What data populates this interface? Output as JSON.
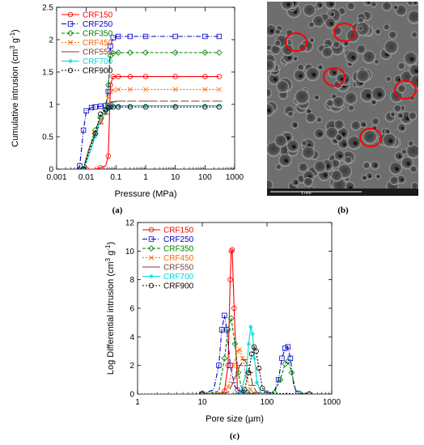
{
  "chart_data": [
    {
      "type": "line",
      "panel": "a",
      "caption": "(a)",
      "xlabel": "Pressure (MPa)",
      "ylabel": "Cumulative intrusion (cm",
      "ylabel_sup1": "3",
      "ylabel_mid": " g",
      "ylabel_sup2": "-1",
      "ylabel_end": ")",
      "xscale": "log",
      "xlim": [
        0.001,
        1000
      ],
      "ylim": [
        0,
        2.5
      ],
      "xticks": [
        "0.001",
        "0.01",
        "0.1",
        "1",
        "10",
        "100",
        "1000"
      ],
      "yticks": [
        "0",
        "0.5",
        "1",
        "1.5",
        "2",
        "2.5"
      ],
      "legend_position": "top-left",
      "series": [
        {
          "name": "CRF150",
          "color": "#ff0000",
          "dash": "",
          "marker": "circle",
          "x": [
            0.005,
            0.01,
            0.02,
            0.03,
            0.045,
            0.055,
            0.065,
            0.08,
            0.12,
            0.3,
            1,
            10,
            100,
            300
          ],
          "y": [
            0,
            0,
            0,
            0.02,
            0.05,
            0.2,
            1.3,
            1.43,
            1.43,
            1.43,
            1.43,
            1.43,
            1.43,
            1.43
          ]
        },
        {
          "name": "CRF250",
          "color": "#0000cc",
          "dash": "6,2,1,2",
          "marker": "square",
          "x": [
            0.005,
            0.006,
            0.008,
            0.01,
            0.015,
            0.02,
            0.03,
            0.045,
            0.055,
            0.065,
            0.08,
            0.12,
            0.3,
            1,
            10,
            100,
            300
          ],
          "y": [
            0,
            0.05,
            0.6,
            0.9,
            0.95,
            0.96,
            0.97,
            0.98,
            1.2,
            1.9,
            2.03,
            2.05,
            2.05,
            2.05,
            2.05,
            2.05,
            2.05
          ]
        },
        {
          "name": "CRF350",
          "color": "#008000",
          "dash": "4,2",
          "marker": "diamond",
          "x": [
            0.005,
            0.008,
            0.012,
            0.02,
            0.03,
            0.045,
            0.055,
            0.065,
            0.08,
            0.12,
            0.3,
            1,
            10,
            100,
            300
          ],
          "y": [
            0,
            0,
            0.3,
            0.6,
            0.8,
            0.9,
            1.3,
            1.75,
            1.79,
            1.8,
            1.8,
            1.8,
            1.8,
            1.8,
            1.8
          ]
        },
        {
          "name": "CRF450",
          "color": "#ff6600",
          "dash": "2,2",
          "marker": "x",
          "x": [
            0.005,
            0.008,
            0.012,
            0.02,
            0.03,
            0.045,
            0.055,
            0.065,
            0.08,
            0.12,
            0.3,
            1,
            10,
            100,
            300
          ],
          "y": [
            0,
            0,
            0.25,
            0.55,
            0.75,
            0.88,
            1.1,
            1.2,
            1.22,
            1.23,
            1.23,
            1.23,
            1.23,
            1.23,
            1.23
          ]
        },
        {
          "name": "CRF550",
          "color": "#7f3f2f",
          "dash": "10,3",
          "marker": "dash",
          "x": [
            0.005,
            0.008,
            0.012,
            0.02,
            0.03,
            0.045,
            0.055,
            0.065,
            0.08,
            0.12,
            0.3,
            1,
            10,
            100,
            300
          ],
          "y": [
            0,
            0.02,
            0.3,
            0.55,
            0.7,
            0.85,
            0.95,
            1.02,
            1.04,
            1.05,
            1.05,
            1.05,
            1.05,
            1.05,
            1.05
          ]
        },
        {
          "name": "CRF700",
          "color": "#00d8d8",
          "dash": "",
          "marker": "star",
          "x": [
            0.005,
            0.008,
            0.012,
            0.02,
            0.03,
            0.045,
            0.055,
            0.065,
            0.08,
            0.12,
            0.3,
            1,
            10,
            100,
            300
          ],
          "y": [
            0,
            0,
            0.2,
            0.5,
            0.8,
            0.9,
            0.95,
            0.97,
            0.98,
            0.98,
            0.98,
            0.98,
            0.98,
            0.98,
            0.98
          ]
        },
        {
          "name": "CRF900",
          "color": "#000000",
          "dash": "2,2",
          "marker": "circle-open",
          "x": [
            0.005,
            0.008,
            0.012,
            0.02,
            0.03,
            0.045,
            0.055,
            0.065,
            0.08,
            0.12,
            0.3,
            1,
            10,
            100,
            300
          ],
          "y": [
            0,
            0,
            0.25,
            0.55,
            0.85,
            0.92,
            0.95,
            0.96,
            0.96,
            0.96,
            0.96,
            0.96,
            0.96,
            0.96,
            0.96
          ]
        }
      ]
    },
    {
      "type": "line",
      "panel": "c",
      "caption": "(c)",
      "xlabel": "Pore size (µm)",
      "ylabel": "Log Differential intrusion (cm",
      "ylabel_sup1": "3",
      "ylabel_mid": " g",
      "ylabel_sup2": "-1",
      "ylabel_end": ")",
      "xscale": "log",
      "xlim": [
        1,
        1000
      ],
      "ylim": [
        0,
        12
      ],
      "xticks": [
        "1",
        "10",
        "100",
        "1000"
      ],
      "yticks": [
        "0",
        "2",
        "4",
        "6",
        "8",
        "10",
        "12"
      ],
      "legend_position": "top-left",
      "series": [
        {
          "name": "CRF150",
          "color": "#ff0000",
          "dash": "",
          "marker": "circle",
          "x": [
            1,
            10,
            18,
            22,
            25,
            27,
            28,
            29,
            31,
            35,
            45,
            100,
            450
          ],
          "y": [
            0,
            0,
            0,
            0.2,
            2,
            8,
            10,
            10.1,
            6,
            0.3,
            0,
            0,
            0
          ]
        },
        {
          "name": "CRF250",
          "color": "#0000cc",
          "dash": "6,2,1,2",
          "marker": "square",
          "x": [
            1,
            10,
            15,
            18,
            20,
            22,
            24,
            27,
            32,
            40,
            60,
            100,
            130,
            150,
            170,
            190,
            210,
            230,
            260,
            300,
            450
          ],
          "y": [
            0,
            0,
            0.3,
            2,
            4.5,
            5.5,
            4.5,
            2,
            0.5,
            0.1,
            0,
            0,
            0.2,
            1,
            2.5,
            3.2,
            3.3,
            2.5,
            0.5,
            0.05,
            0
          ]
        },
        {
          "name": "CRF350",
          "color": "#008000",
          "dash": "4,2",
          "marker": "diamond",
          "x": [
            1,
            10,
            18,
            22,
            25,
            28,
            32,
            36,
            40,
            50,
            80,
            130,
            160,
            190,
            210,
            240,
            280,
            450
          ],
          "y": [
            0,
            0,
            0.2,
            2.5,
            4.5,
            5.3,
            3.5,
            1.5,
            0.5,
            0.1,
            0,
            0.1,
            1,
            2.1,
            2.3,
            1.5,
            0.2,
            0
          ]
        },
        {
          "name": "CRF450",
          "color": "#ff6600",
          "dash": "2,2",
          "marker": "x",
          "x": [
            1,
            10,
            20,
            25,
            30,
            35,
            38,
            42,
            48,
            55,
            70,
            100,
            450
          ],
          "y": [
            0,
            0,
            0.1,
            0.5,
            2,
            3,
            3.1,
            2.5,
            1.2,
            0.3,
            0.05,
            0,
            0
          ]
        },
        {
          "name": "CRF550",
          "color": "#7f3f2f",
          "dash": "10,3",
          "marker": "dash",
          "x": [
            1,
            10,
            25,
            30,
            38,
            45,
            50,
            55,
            60,
            70,
            100,
            450
          ],
          "y": [
            0,
            0,
            0.1,
            0.8,
            2,
            2.4,
            2,
            1.5,
            0.6,
            0.1,
            0,
            0
          ]
        },
        {
          "name": "CRF700",
          "color": "#00d8d8",
          "dash": "",
          "marker": "star",
          "x": [
            1,
            10,
            30,
            40,
            48,
            52,
            56,
            60,
            64,
            70,
            80,
            100,
            450
          ],
          "y": [
            0,
            0,
            0,
            0.2,
            1.5,
            3.5,
            4.7,
            4.2,
            2.5,
            0.8,
            0.1,
            0,
            0
          ]
        },
        {
          "name": "CRF900",
          "color": "#000000",
          "dash": "2,2",
          "marker": "circle-open",
          "x": [
            1,
            10,
            35,
            45,
            52,
            58,
            63,
            68,
            75,
            85,
            100,
            450
          ],
          "y": [
            0,
            0,
            0,
            0.3,
            1.5,
            2.8,
            3.3,
            3,
            1.8,
            0.4,
            0.05,
            0
          ]
        }
      ]
    }
  ],
  "image_b": {
    "caption": "(b)",
    "scalebar_label": "1 mm",
    "highlight_color": "#ff0000"
  }
}
